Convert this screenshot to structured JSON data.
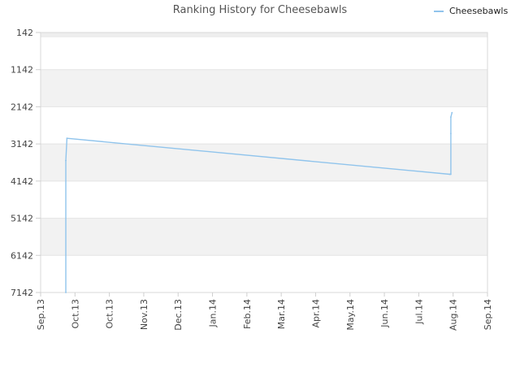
{
  "chart_data": {
    "type": "line",
    "title": "Ranking History for Cheesebawls",
    "xlabel": "",
    "ylabel": "",
    "y_inverted": true,
    "ylim": [
      142,
      7142
    ],
    "y_ticks": [
      "142",
      "1142",
      "2142",
      "3142",
      "4142",
      "5142",
      "6142",
      "7142"
    ],
    "x_tick_labels": [
      "Sep.13",
      "Oct.13",
      "Oct.13",
      "Nov.13",
      "Dec.13",
      "Jan.14",
      "Feb.14",
      "Mar.14",
      "Apr.14",
      "May.14",
      "Jun.14",
      "Jul.14",
      "Aug.14",
      "Sep.14"
    ],
    "x_tick_dates": [
      "2013-09-01",
      "2013-10-01",
      "2013-10-31",
      "2013-11-30",
      "2013-12-30",
      "2014-01-29",
      "2014-02-28",
      "2014-03-30",
      "2014-04-29",
      "2014-05-29",
      "2014-06-28",
      "2014-07-28",
      "2014-08-27",
      "2014-09-26"
    ],
    "xlim": [
      "2013-09-01",
      "2014-09-26"
    ],
    "grid": true,
    "legend_position": "top-right",
    "series": [
      {
        "name": "Cheesebawls",
        "color": "#90c4ec",
        "points": [
          {
            "x": "2013-09-23",
            "y": 7142
          },
          {
            "x": "2013-09-23",
            "y": 3590
          },
          {
            "x": "2013-09-24",
            "y": 2990
          },
          {
            "x": "2014-08-24",
            "y": 3960
          },
          {
            "x": "2014-08-25",
            "y": 3960
          },
          {
            "x": "2014-08-25",
            "y": 2860
          },
          {
            "x": "2014-08-25",
            "y": 2420
          },
          {
            "x": "2014-08-26",
            "y": 2300
          }
        ]
      }
    ]
  }
}
